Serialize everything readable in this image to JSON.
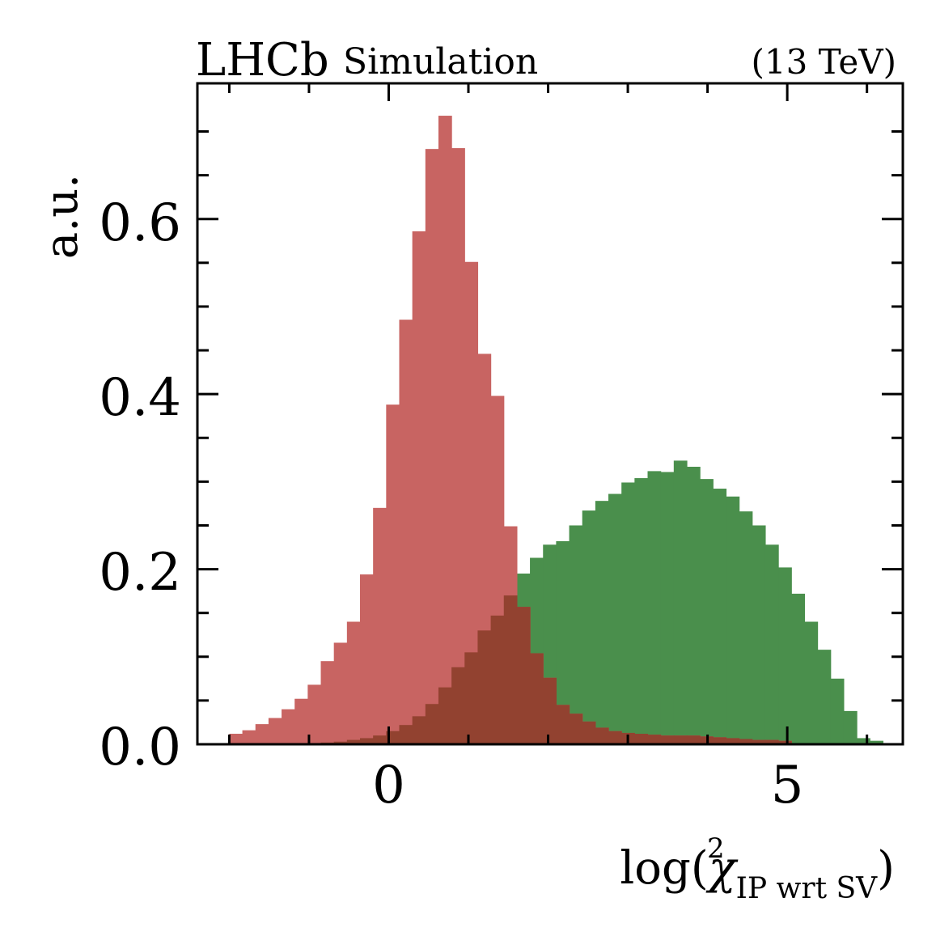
{
  "chart_data": {
    "type": "histogram",
    "experiment": "LHCb",
    "label": "Simulation",
    "energy": "(13 TeV)",
    "ylabel": "a.u.",
    "xlabel": {
      "prefix": "log(",
      "symbol": "χ",
      "superscript": "2",
      "subscript": "IP wrt SV",
      "suffix": ")"
    },
    "xlim": [
      -2.4,
      6.45
    ],
    "ylim": [
      0,
      0.755
    ],
    "x_ticks": [
      0,
      5
    ],
    "x_tick_labels": [
      "0",
      "5"
    ],
    "y_ticks": [
      0.0,
      0.2,
      0.4,
      0.6
    ],
    "y_tick_labels": [
      "0.0",
      "0.2",
      "0.4",
      "0.6"
    ],
    "bins": {
      "start": -2.0,
      "width": 0.164,
      "count": 50
    },
    "series": [
      {
        "name": "green",
        "color": "#4a8f4c",
        "values": [
          0.0,
          0.0,
          0.0,
          0.0,
          0.0,
          0.0,
          0.0,
          0.002,
          0.003,
          0.005,
          0.007,
          0.01,
          0.015,
          0.022,
          0.032,
          0.046,
          0.065,
          0.088,
          0.105,
          0.13,
          0.147,
          0.17,
          0.195,
          0.213,
          0.228,
          0.232,
          0.25,
          0.267,
          0.278,
          0.286,
          0.299,
          0.304,
          0.312,
          0.311,
          0.324,
          0.317,
          0.303,
          0.292,
          0.283,
          0.266,
          0.25,
          0.228,
          0.202,
          0.172,
          0.14,
          0.108,
          0.075,
          0.038,
          0.007,
          0.004
        ]
      },
      {
        "name": "red",
        "color": "#c86462",
        "values": [
          0.012,
          0.016,
          0.023,
          0.03,
          0.04,
          0.052,
          0.068,
          0.095,
          0.116,
          0.14,
          0.194,
          0.27,
          0.388,
          0.485,
          0.586,
          0.68,
          0.718,
          0.681,
          0.551,
          0.446,
          0.398,
          0.249,
          0.157,
          0.104,
          0.076,
          0.045,
          0.035,
          0.026,
          0.019,
          0.015,
          0.013,
          0.012,
          0.011,
          0.01,
          0.01,
          0.01,
          0.009,
          0.008,
          0.007,
          0.006,
          0.005,
          0.005,
          0.004,
          0.0,
          0.0,
          0.0,
          0.0,
          0.0,
          0.0,
          0.0
        ]
      }
    ]
  }
}
